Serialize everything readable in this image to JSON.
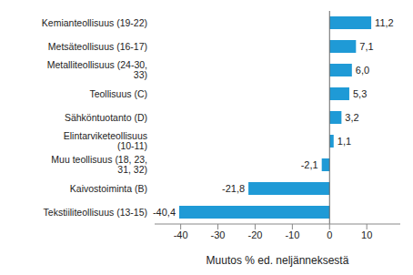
{
  "chart_data": {
    "type": "bar",
    "orientation": "horizontal",
    "categories": [
      "Kemianteollisuus (19-22)",
      "Metsäteollisuus (16-17)",
      "Metalliteollisuus (24-30, 33)",
      "Teollisuus (C)",
      "Sähköntuotanto (D)",
      "Elintarviketeollisuus (10-11)",
      "Muu teollisuus (18, 23, 31, 32)",
      "Kaivostoiminta (B)",
      "Tekstiiliteollisuus (13-15)"
    ],
    "values": [
      11.2,
      7.1,
      6.0,
      5.3,
      3.2,
      1.1,
      -2.1,
      -21.8,
      -40.4
    ],
    "value_labels": [
      "11,2",
      "7,1",
      "6,0",
      "5,3",
      "3,2",
      "1,1",
      "-2,1",
      "-21,8",
      "-40,4"
    ],
    "data_labels": true,
    "color": "#1f9ad6",
    "x_label": "Muutos % ed. neljänneksestä",
    "xlim": [
      -47,
      19
    ],
    "xticks": [
      -40,
      -30,
      -20,
      -10,
      0,
      10
    ],
    "grid": false
  }
}
